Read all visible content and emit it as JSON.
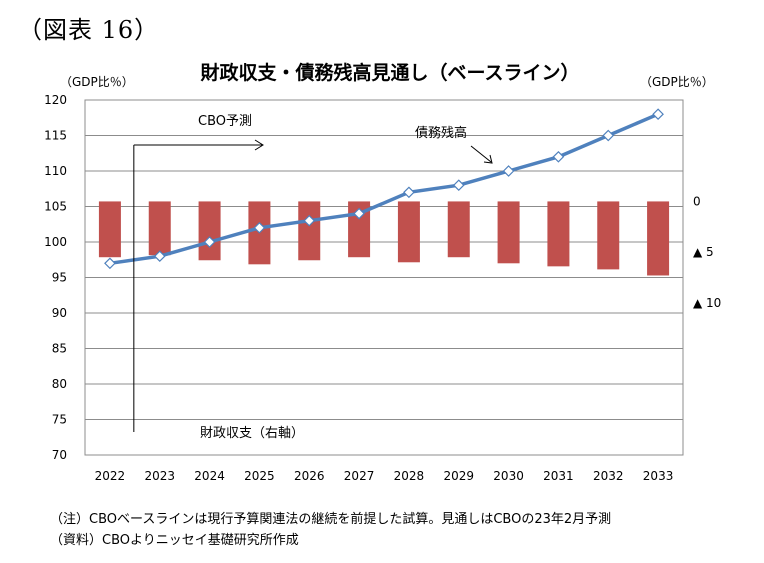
{
  "figure_label": "（図表 16）",
  "chart_data": {
    "type": "bar+line",
    "title": "財政収支・債務残高見通し（ベースライン）",
    "left_unit": "（GDP比％）",
    "right_unit": "（GDP比％）",
    "categories": [
      "2022",
      "2023",
      "2024",
      "2025",
      "2026",
      "2027",
      "2028",
      "2029",
      "2030",
      "2031",
      "2032",
      "2033"
    ],
    "left_axis": {
      "ylim": [
        70,
        120
      ],
      "ticks": [
        "70",
        "75",
        "80",
        "85",
        "90",
        "95",
        "100",
        "105",
        "110",
        "115",
        "120"
      ]
    },
    "right_axis": {
      "ylim": [
        10,
        -25
      ],
      "ticks": [
        "0",
        "▲ 5",
        "▲ 10"
      ]
    },
    "grid": true,
    "series": [
      {
        "name": "債務残高",
        "kind": "line",
        "axis": "left",
        "color": "#4f81bd",
        "values": [
          97,
          98,
          100,
          102,
          103,
          104,
          107,
          108,
          110,
          112,
          115,
          118
        ]
      },
      {
        "name": "財政収支（右軸）",
        "kind": "bar",
        "axis": "right",
        "color": "#c0504d",
        "values": [
          -5.5,
          -5.3,
          -5.8,
          -6.2,
          -5.8,
          -5.5,
          -6.0,
          -5.5,
          -6.1,
          -6.4,
          -6.7,
          -7.3
        ]
      }
    ],
    "annotations": {
      "forecast_label": "CBO予測",
      "forecast_start": "2023"
    }
  },
  "notes": [
    "（注）CBOベースラインは現行予算関連法の継続を前提した試算。見通しはCBOの23年2月予測",
    "（資料）CBOよりニッセイ基礎研究所作成"
  ]
}
